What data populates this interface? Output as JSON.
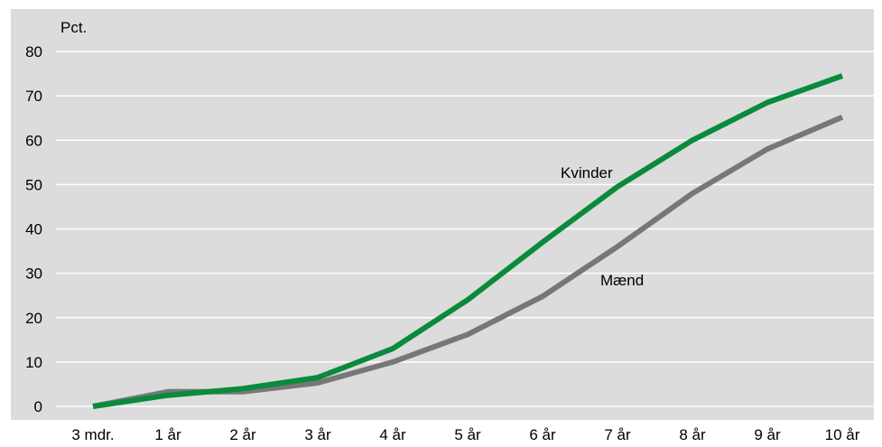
{
  "chart_data": {
    "type": "line",
    "title": "",
    "xlabel": "",
    "ylabel": "Pct.",
    "ylim": [
      0,
      80
    ],
    "yticks": [
      0,
      10,
      20,
      30,
      40,
      50,
      60,
      70,
      80
    ],
    "grid": true,
    "legend": "none (inline labels)",
    "categories": [
      "3 mdr.",
      "1 år",
      "2 år",
      "3 år",
      "4 år",
      "5 år",
      "6 år",
      "7 år",
      "8 år",
      "9 år",
      "10 år"
    ],
    "series": [
      {
        "name": "Kvinder",
        "color": "#0a8a3c",
        "values": [
          0,
          2.5,
          4.0,
          6.5,
          13.0,
          24.0,
          37.0,
          49.5,
          60.0,
          68.5,
          74.5
        ]
      },
      {
        "name": "Mænd",
        "color": "#777777",
        "values": [
          0,
          3.3,
          3.3,
          5.3,
          10.0,
          16.2,
          24.8,
          36.0,
          48.0,
          58.0,
          65.2
        ]
      }
    ],
    "background_color": "#dcdcdc",
    "grid_color": "#ffffff"
  }
}
